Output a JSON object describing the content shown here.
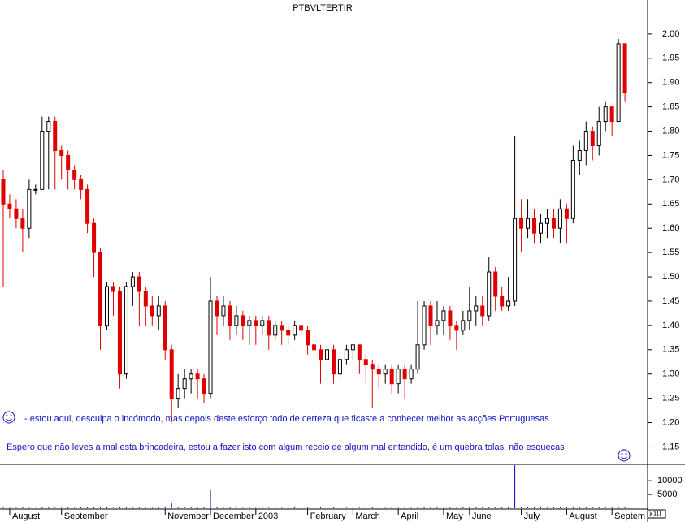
{
  "chart_data": [
    {
      "type": "candlestick",
      "title": "PTBVLTERTIR",
      "categories": [
        null,
        "August",
        null,
        null,
        null,
        null,
        null,
        null,
        null,
        "September",
        null,
        null,
        null,
        null,
        null,
        null,
        null,
        null,
        null,
        null,
        null,
        null,
        null,
        null,
        null,
        "November",
        null,
        null,
        null,
        null,
        null,
        null,
        "December",
        null,
        null,
        null,
        null,
        null,
        null,
        "2003",
        null,
        null,
        null,
        null,
        null,
        null,
        null,
        "February",
        null,
        null,
        null,
        null,
        null,
        null,
        "March",
        null,
        null,
        null,
        null,
        null,
        null,
        "April",
        null,
        null,
        null,
        null,
        null,
        null,
        "May",
        null,
        null,
        null,
        "June",
        null,
        null,
        null,
        null,
        null,
        null,
        null,
        "July",
        null,
        null,
        null,
        null,
        null,
        null,
        "August",
        null,
        null,
        null,
        null,
        null,
        null,
        "Septem",
        null,
        null
      ],
      "open": [
        1.7,
        1.65,
        1.64,
        1.62,
        1.6,
        1.68,
        1.68,
        1.8,
        1.82,
        1.76,
        1.75,
        1.72,
        1.7,
        1.68,
        1.61,
        1.55,
        1.4,
        1.48,
        1.47,
        1.3,
        1.48,
        1.5,
        1.47,
        1.44,
        1.42,
        1.44,
        1.35,
        1.25,
        1.27,
        1.29,
        1.3,
        1.29,
        1.26,
        1.45,
        1.42,
        1.44,
        1.4,
        1.42,
        1.4,
        1.41,
        1.4,
        1.41,
        1.38,
        1.4,
        1.39,
        1.38,
        1.4,
        1.39,
        1.36,
        1.35,
        1.33,
        1.35,
        1.3,
        1.33,
        1.35,
        1.36,
        1.33,
        1.32,
        1.31,
        1.3,
        1.31,
        1.28,
        1.31,
        1.29,
        1.31,
        1.36,
        1.44,
        1.4,
        1.41,
        1.43,
        1.4,
        1.39,
        1.41,
        1.43,
        1.44,
        1.42,
        1.51,
        1.46,
        1.44,
        1.45,
        1.62,
        1.6,
        1.62,
        1.59,
        1.61,
        1.62,
        1.6,
        1.64,
        1.62,
        1.74,
        1.76,
        1.8,
        1.77,
        1.82,
        1.85,
        1.82,
        1.98
      ],
      "high": [
        1.72,
        1.67,
        1.66,
        1.64,
        1.7,
        1.69,
        1.83,
        1.83,
        1.83,
        1.77,
        1.76,
        1.73,
        1.71,
        1.69,
        1.62,
        1.56,
        1.49,
        1.49,
        1.48,
        1.49,
        1.51,
        1.51,
        1.48,
        1.46,
        1.46,
        1.45,
        1.36,
        1.3,
        1.31,
        1.31,
        1.31,
        1.3,
        1.5,
        1.46,
        1.46,
        1.45,
        1.44,
        1.43,
        1.42,
        1.42,
        1.42,
        1.42,
        1.41,
        1.41,
        1.4,
        1.41,
        1.4,
        1.4,
        1.37,
        1.36,
        1.36,
        1.36,
        1.35,
        1.36,
        1.36,
        1.36,
        1.34,
        1.33,
        1.32,
        1.32,
        1.32,
        1.32,
        1.32,
        1.32,
        1.45,
        1.45,
        1.45,
        1.45,
        1.44,
        1.44,
        1.41,
        1.43,
        1.48,
        1.46,
        1.46,
        1.54,
        1.52,
        1.48,
        1.5,
        1.79,
        1.66,
        1.66,
        1.64,
        1.63,
        1.64,
        1.64,
        1.66,
        1.65,
        1.77,
        1.78,
        1.82,
        1.81,
        1.85,
        1.86,
        1.85,
        1.99,
        1.98
      ],
      "low": [
        1.48,
        1.62,
        1.6,
        1.55,
        1.58,
        1.67,
        1.68,
        1.68,
        1.68,
        1.7,
        1.68,
        1.68,
        1.66,
        1.59,
        1.5,
        1.35,
        1.39,
        1.42,
        1.27,
        1.29,
        1.44,
        1.4,
        1.4,
        1.4,
        1.39,
        1.33,
        1.2,
        1.23,
        1.25,
        1.26,
        1.25,
        1.24,
        1.25,
        1.38,
        1.4,
        1.37,
        1.38,
        1.37,
        1.36,
        1.36,
        1.38,
        1.35,
        1.37,
        1.36,
        1.36,
        1.37,
        1.38,
        1.34,
        1.32,
        1.28,
        1.31,
        1.28,
        1.29,
        1.32,
        1.33,
        1.3,
        1.28,
        1.23,
        1.27,
        1.28,
        1.26,
        1.26,
        1.25,
        1.28,
        1.3,
        1.35,
        1.36,
        1.38,
        1.38,
        1.37,
        1.35,
        1.38,
        1.39,
        1.4,
        1.4,
        1.41,
        1.43,
        1.43,
        1.43,
        1.44,
        1.55,
        1.58,
        1.57,
        1.57,
        1.58,
        1.58,
        1.57,
        1.57,
        1.61,
        1.71,
        1.73,
        1.74,
        1.75,
        1.8,
        1.79,
        1.82,
        1.86
      ],
      "close": [
        1.65,
        1.64,
        1.62,
        1.6,
        1.68,
        1.68,
        1.8,
        1.82,
        1.76,
        1.75,
        1.72,
        1.7,
        1.68,
        1.61,
        1.55,
        1.4,
        1.48,
        1.47,
        1.3,
        1.48,
        1.5,
        1.47,
        1.44,
        1.42,
        1.44,
        1.35,
        1.25,
        1.27,
        1.29,
        1.3,
        1.29,
        1.26,
        1.45,
        1.42,
        1.44,
        1.4,
        1.42,
        1.4,
        1.41,
        1.4,
        1.41,
        1.38,
        1.4,
        1.39,
        1.38,
        1.4,
        1.39,
        1.36,
        1.35,
        1.33,
        1.35,
        1.3,
        1.33,
        1.35,
        1.36,
        1.33,
        1.32,
        1.31,
        1.3,
        1.31,
        1.28,
        1.31,
        1.29,
        1.31,
        1.36,
        1.44,
        1.4,
        1.41,
        1.43,
        1.4,
        1.39,
        1.41,
        1.43,
        1.44,
        1.42,
        1.51,
        1.46,
        1.44,
        1.45,
        1.62,
        1.6,
        1.62,
        1.59,
        1.61,
        1.62,
        1.6,
        1.64,
        1.62,
        1.74,
        1.76,
        1.8,
        1.77,
        1.82,
        1.85,
        1.82,
        1.98,
        1.88
      ],
      "up_color": "#000000",
      "down_color": "#e00000",
      "ylim": [
        1.114,
        2.07
      ],
      "yticks": [
        1.15,
        {
          "value": 1.2,
          "label": "1.20"
        },
        1.25,
        {
          "value": 1.3,
          "label": "1.30"
        },
        1.35,
        {
          "value": 1.4,
          "label": "1.40"
        },
        1.45,
        {
          "value": 1.5,
          "label": "1.50"
        },
        1.55,
        {
          "value": 1.6,
          "label": "1.60"
        },
        1.65,
        {
          "value": 1.7,
          "label": "1.70"
        },
        1.75,
        {
          "value": 1.8,
          "label": "1.80"
        },
        1.85,
        {
          "value": 1.9,
          "label": "1.90"
        },
        1.95,
        {
          "value": 2.0,
          "label": "2.00"
        }
      ],
      "annotations": [
        "- estou aqui, desculpa o incómodo, mas depois deste esforço todo de certeza que ficaste a conhecer melhor as acções Portuguesas",
        "Espero que não leves a mal esta brincadeira, estou a fazer isto com algum receio de algum mal entendido, é um quebra tolas, não esquecas"
      ]
    },
    {
      "type": "bar",
      "color": "#0000c0",
      "values": [
        300,
        200,
        200,
        300,
        200,
        100,
        400,
        300,
        200,
        200,
        300,
        200,
        300,
        400,
        300,
        500,
        300,
        200,
        400,
        300,
        200,
        300,
        200,
        200,
        300,
        600,
        1800,
        500,
        300,
        400,
        300,
        500,
        6800,
        600,
        400,
        300,
        300,
        200,
        300,
        200,
        300,
        200,
        300,
        200,
        200,
        300,
        200,
        300,
        200,
        400,
        300,
        300,
        200,
        200,
        300,
        200,
        300,
        400,
        300,
        200,
        300,
        200,
        300,
        200,
        400,
        600,
        300,
        300,
        200,
        300,
        200,
        300,
        400,
        300,
        300,
        500,
        300,
        300,
        400,
        15600,
        500,
        400,
        300,
        300,
        200,
        400,
        300,
        300,
        600,
        400,
        500,
        400,
        400,
        300,
        500,
        400,
        300
      ],
      "ylim": [
        0,
        15940
      ],
      "yticks": [
        5000,
        10000
      ],
      "unit_label": "x10"
    }
  ]
}
